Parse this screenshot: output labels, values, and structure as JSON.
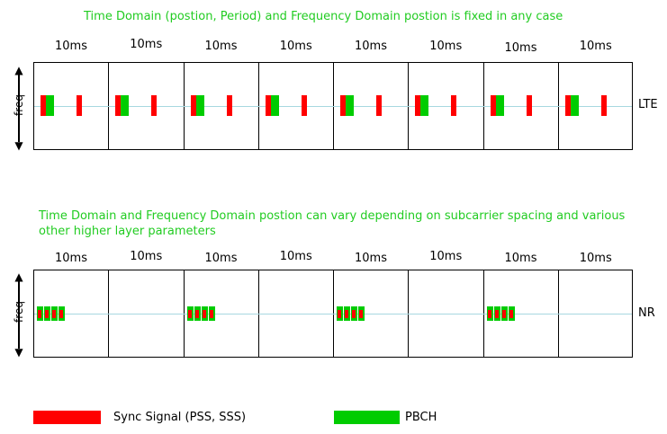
{
  "captions": {
    "lte": "Time Domain (postion, Period) and Frequency Domain postion is fixed in any case",
    "nr": "Time Domain and Frequency Domain postion can vary depending on subcarrier spacing and various other higher layer parameters"
  },
  "lte": {
    "label": "LTE",
    "frame_labels": [
      "10ms",
      "10ms",
      "10ms",
      "10ms",
      "10ms",
      "10ms",
      "10ms",
      "10ms"
    ]
  },
  "nr": {
    "label": "NR",
    "frame_labels": [
      "10ms",
      "10ms",
      "10ms",
      "10ms",
      "10ms",
      "10ms",
      "10ms",
      "10ms"
    ]
  },
  "axis_label": "freq",
  "legend": {
    "sync": "Sync Signal (PSS, SSS)",
    "pbch": "PBCH"
  },
  "colors": {
    "sync": "#ff0000",
    "pbch": "#00cc00",
    "caption": "#22cc22",
    "baseline": "#a8d8e0"
  }
}
